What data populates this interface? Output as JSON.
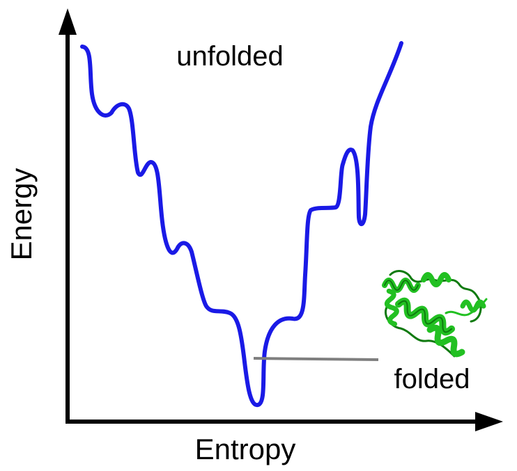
{
  "diagram": {
    "labels": {
      "y_axis": "Energy",
      "x_axis": "Entropy",
      "top": "unfolded",
      "bottom": "folded"
    },
    "colors": {
      "axes": "#000000",
      "funnel": "#1a1ae6",
      "pointer": "#7f7f7f",
      "protein": "#22c022",
      "protein_dark": "#0f7a0f"
    },
    "icons": {
      "protein": "protein-ribbon-icon"
    }
  }
}
